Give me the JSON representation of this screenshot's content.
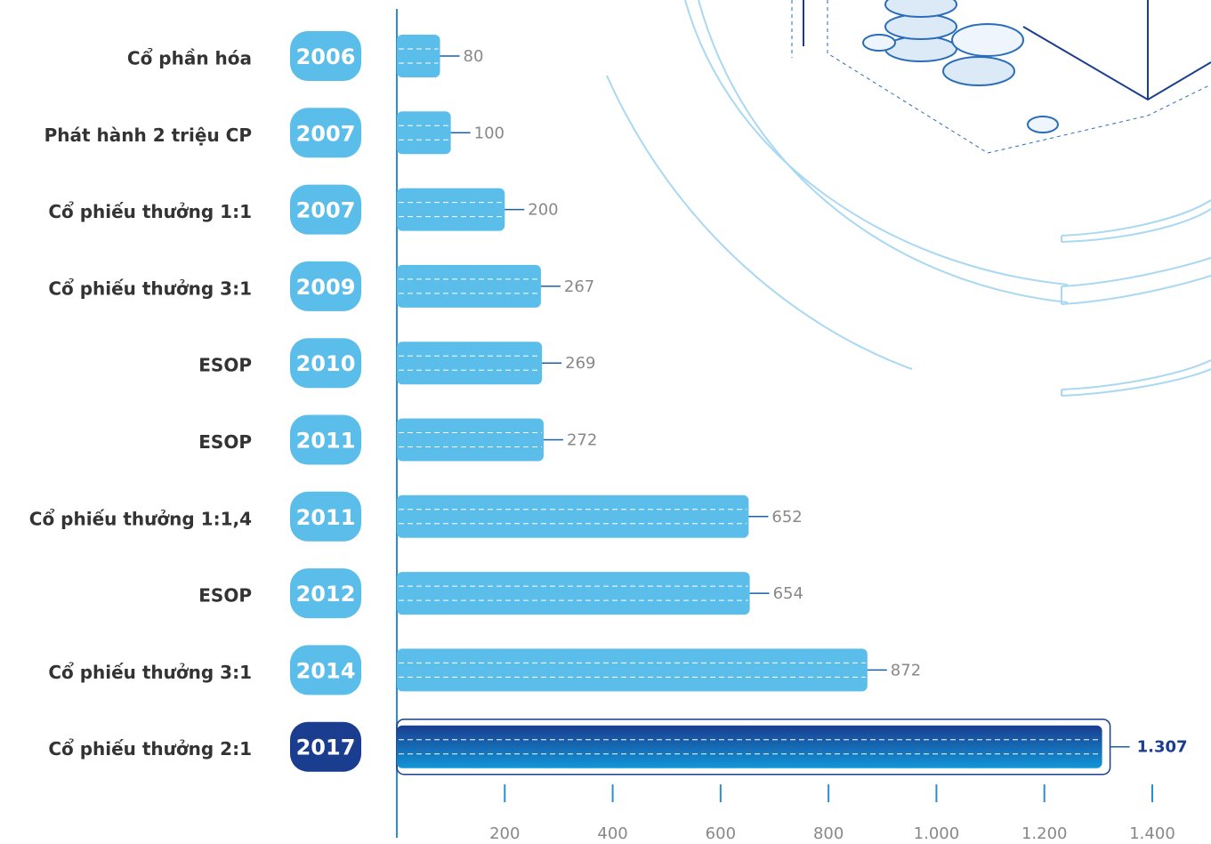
{
  "chart_data": {
    "type": "bar",
    "categories": [
      "Cổ phần hóa",
      "Phát hành 2 triệu CP",
      "Cổ phiếu thưởng 1:1",
      "Cổ phiếu thưởng 3:1",
      "ESOP",
      "ESOP",
      "Cổ phiếu thưởng 1:1,4",
      "ESOP",
      "Cổ phiếu thưởng 3:1",
      "Cổ phiếu thưởng 2:1"
    ],
    "years": [
      "2006",
      "2007",
      "2007",
      "2009",
      "2010",
      "2011",
      "2011",
      "2012",
      "2014",
      "2017"
    ],
    "values": [
      80,
      100,
      200,
      267,
      269,
      272,
      652,
      654,
      872,
      1307
    ],
    "value_labels": [
      "80",
      "100",
      "200",
      "267",
      "269",
      "272",
      "652",
      "654",
      "872",
      "1.307"
    ],
    "colors": [
      "#5bbde9",
      "#5bbde9",
      "#5bbde9",
      "#5bbde9",
      "#5bbde9",
      "#5bbde9",
      "#5bbde9",
      "#5bbde9",
      "#5bbde9",
      "#1a3d8f"
    ],
    "xlim": [
      0,
      1400
    ],
    "xticks": [
      200,
      400,
      600,
      800,
      {
        "value": 1000,
        "label": "1.000"
      },
      {
        "value": 1200,
        "label": "1.200"
      },
      {
        "value": 1400,
        "label": "1.400"
      }
    ]
  }
}
